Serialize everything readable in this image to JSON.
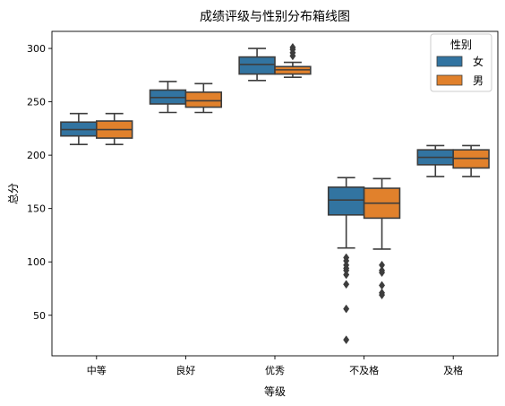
{
  "chart_data": {
    "type": "boxplot",
    "title": "成绩评级与性别分布箱线图",
    "xlabel": "等级",
    "ylabel": "总分",
    "categories": [
      "中等",
      "良好",
      "优秀",
      "不及格",
      "及格"
    ],
    "ylim": [
      12,
      316
    ],
    "yticks": [
      50,
      100,
      150,
      200,
      250,
      300
    ],
    "legend": {
      "title": "性别",
      "position": "top-right"
    },
    "series": [
      {
        "name": "女",
        "color": "#3274a1",
        "boxes": [
          {
            "whislo": 210,
            "q1": 218,
            "med": 224,
            "q3": 231,
            "whishi": 239,
            "fliers": []
          },
          {
            "whislo": 240,
            "q1": 248,
            "med": 254,
            "q3": 261,
            "whishi": 269,
            "fliers": []
          },
          {
            "whislo": 270,
            "q1": 276,
            "med": 285,
            "q3": 292,
            "whishi": 300,
            "fliers": []
          },
          {
            "whislo": 113,
            "q1": 144,
            "med": 158,
            "q3": 170,
            "whishi": 179,
            "fliers": [
              104,
              101,
              97,
              94,
              92,
              88,
              79,
              56,
              27
            ]
          },
          {
            "whislo": 180,
            "q1": 191,
            "med": 198,
            "q3": 205,
            "whishi": 209,
            "fliers": []
          }
        ]
      },
      {
        "name": "男",
        "color": "#e1812c",
        "boxes": [
          {
            "whislo": 210,
            "q1": 216,
            "med": 224,
            "q3": 232,
            "whishi": 239,
            "fliers": []
          },
          {
            "whislo": 240,
            "q1": 245,
            "med": 251,
            "q3": 259,
            "whishi": 267,
            "fliers": []
          },
          {
            "whislo": 273,
            "q1": 276,
            "med": 280,
            "q3": 283,
            "whishi": 287,
            "fliers": [
              301,
              299,
              296,
              293
            ]
          },
          {
            "whislo": 112,
            "q1": 141,
            "med": 155,
            "q3": 169,
            "whishi": 178,
            "fliers": [
              97,
              92,
              90,
              78,
              71,
              69
            ]
          },
          {
            "whislo": 180,
            "q1": 188,
            "med": 197,
            "q3": 205,
            "whishi": 209,
            "fliers": []
          }
        ]
      }
    ]
  }
}
